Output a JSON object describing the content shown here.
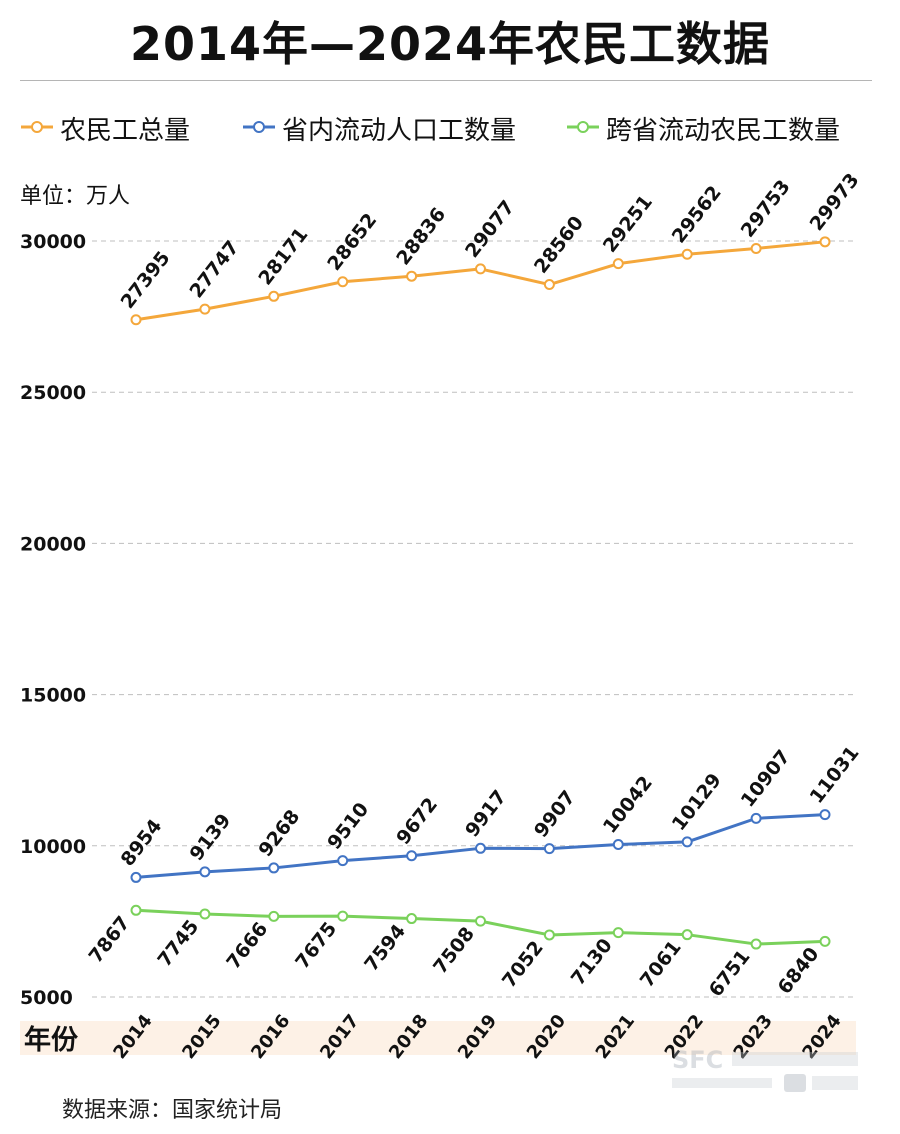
{
  "title": "2014年—2024年农民工数据",
  "unit_label": "单位：万人",
  "source": "数据来源：国家统计局",
  "colors": {
    "total": "#f4a73b",
    "in_province": "#4274c4",
    "cross_province": "#7ad15b",
    "x_band": "#fdf1e6",
    "grid": "#bfbfbf"
  },
  "chart_data": {
    "type": "line",
    "title": "2014年—2024年农民工数据",
    "xlabel": "年份",
    "ylabel": "单位：万人",
    "categories": [
      "2014",
      "2015",
      "2016",
      "2017",
      "2018",
      "2019",
      "2020",
      "2021",
      "2022",
      "2023",
      "2024"
    ],
    "y_ticks": [
      5000,
      10000,
      15000,
      20000,
      25000,
      30000
    ],
    "ylim": [
      5000,
      30000
    ],
    "grid": true,
    "legend_position": "top",
    "series": [
      {
        "key": "total",
        "name": "农民工总量",
        "color": "#f4a73b",
        "label_side": "above",
        "values": [
          27395,
          27747,
          28171,
          28652,
          28836,
          29077,
          28560,
          29251,
          29562,
          29753,
          29973
        ]
      },
      {
        "key": "in_province",
        "name": "省内流动人口工数量",
        "color": "#4274c4",
        "label_side": "above",
        "values": [
          8954,
          9139,
          9268,
          9510,
          9672,
          9917,
          9907,
          10042,
          10129,
          10907,
          11031
        ]
      },
      {
        "key": "cross_province",
        "name": "跨省流动农民工数量",
        "color": "#7ad15b",
        "label_side": "below",
        "values": [
          7867,
          7745,
          7666,
          7675,
          7594,
          7508,
          7052,
          7130,
          7061,
          6751,
          6840
        ]
      }
    ]
  }
}
